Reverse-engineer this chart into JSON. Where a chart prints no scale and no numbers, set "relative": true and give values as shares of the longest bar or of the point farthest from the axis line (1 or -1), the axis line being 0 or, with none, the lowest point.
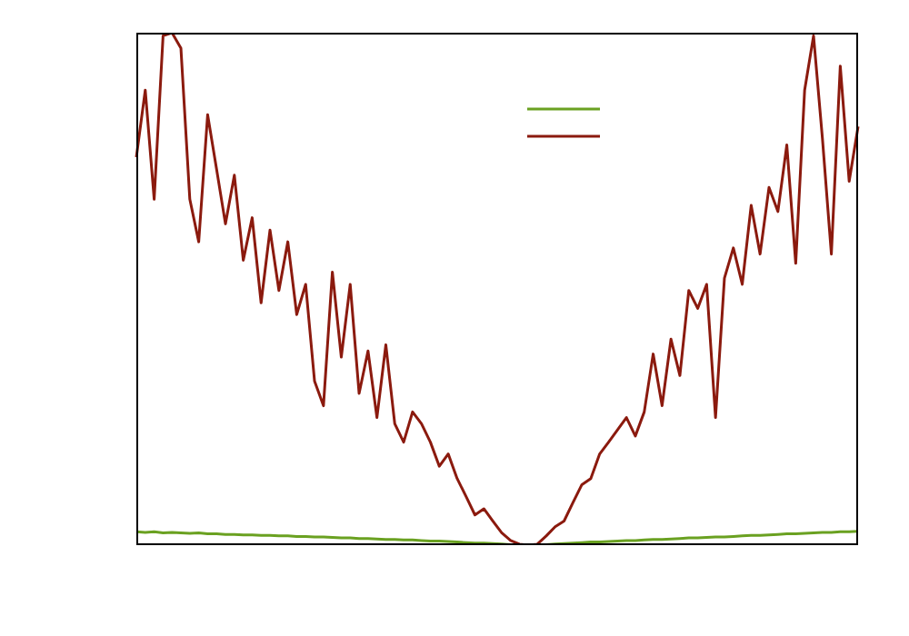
{
  "chart_data": {
    "type": "line",
    "relative": true,
    "marker": "none",
    "line_style": "solid",
    "categories": [
      null,
      null,
      null,
      null,
      null,
      null,
      null,
      null,
      null,
      null,
      null,
      null,
      null,
      null,
      null,
      null,
      null,
      null,
      null,
      null,
      null,
      null,
      null,
      null,
      null,
      null,
      null,
      null,
      null,
      null,
      null,
      null,
      null,
      null,
      null,
      null,
      null,
      null,
      null,
      null,
      null,
      null,
      null,
      null,
      null,
      null,
      null,
      null,
      null,
      null,
      null,
      null,
      null,
      null,
      null,
      null,
      null,
      null,
      null,
      null,
      null,
      null,
      null,
      null,
      null,
      null,
      null,
      null,
      null,
      null,
      null,
      null,
      null,
      null,
      null,
      null,
      null,
      null,
      null,
      null,
      null,
      null
    ],
    "series": [
      {
        "color": "#6aa121",
        "values": [
          0.026,
          0.025,
          0.026,
          0.024,
          0.025,
          0.024,
          0.023,
          0.024,
          0.022,
          0.022,
          0.021,
          0.021,
          0.02,
          0.02,
          0.019,
          0.019,
          0.018,
          0.018,
          0.017,
          0.017,
          0.016,
          0.016,
          0.015,
          0.014,
          0.014,
          0.013,
          0.013,
          0.012,
          0.011,
          0.011,
          0.01,
          0.01,
          0.009,
          0.008,
          0.008,
          0.007,
          0.006,
          0.005,
          0.004,
          0.004,
          0.003,
          0.002,
          0.001,
          0.001,
          0,
          0.001,
          0.001,
          0.002,
          0.003,
          0.004,
          0.005,
          0.006,
          0.006,
          0.007,
          0.008,
          0.009,
          0.009,
          0.01,
          0.011,
          0.011,
          0.012,
          0.013,
          0.014,
          0.014,
          0.015,
          0.016,
          0.016,
          0.017,
          0.018,
          0.019,
          0.019,
          0.02,
          0.021,
          0.022,
          0.022,
          0.023,
          0.024,
          0.025,
          0.025,
          0.026,
          0.026,
          0.027
        ]
      },
      {
        "color": "#8b1a0e",
        "values": [
          0.757,
          0.888,
          0.675,
          0.994,
          1.0,
          0.97,
          0.675,
          0.592,
          0.84,
          0.734,
          0.627,
          0.722,
          0.556,
          0.639,
          0.473,
          0.615,
          0.497,
          0.592,
          0.45,
          0.509,
          0.32,
          0.272,
          0.533,
          0.367,
          0.509,
          0.296,
          0.379,
          0.249,
          0.391,
          0.237,
          0.201,
          0.26,
          0.237,
          0.201,
          0.154,
          0.178,
          0.13,
          0.095,
          0.059,
          0.071,
          0.047,
          0.024,
          0.009,
          0.002,
          0,
          0.002,
          0.018,
          0.036,
          0.047,
          0.083,
          0.118,
          0.13,
          0.178,
          0.201,
          0.225,
          0.249,
          0.213,
          0.26,
          0.373,
          0.272,
          0.402,
          0.331,
          0.497,
          0.462,
          0.509,
          0.249,
          0.521,
          0.58,
          0.509,
          0.663,
          0.568,
          0.698,
          0.651,
          0.781,
          0.55,
          0.888,
          0.994,
          0.793,
          0.568,
          0.935,
          0.71,
          0.817
        ]
      }
    ]
  }
}
